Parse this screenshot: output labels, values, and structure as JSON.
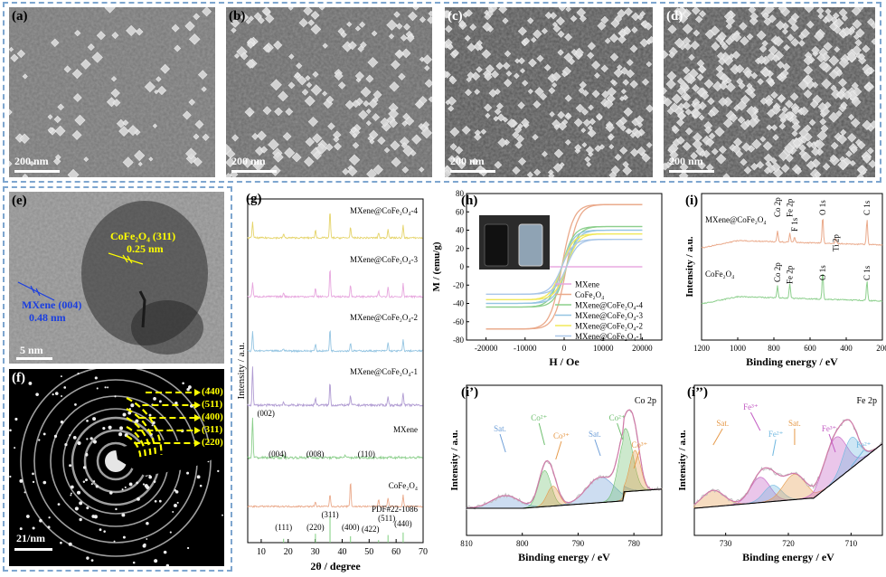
{
  "panels": {
    "a": "(a)",
    "b": "(b)",
    "c": "(c)",
    "d": "(d)",
    "e": "(e)",
    "f": "(f)",
    "g": "(g)",
    "h": "(h)",
    "i": "(i)",
    "i1": "(i’)",
    "i2": "(i’’)"
  },
  "sem_scalebar": "200 nm",
  "tem": {
    "scalebar": "5 nm",
    "cofe_label": "CoFe₂O₄ (311)",
    "cofe_spacing": "0.25 nm",
    "mxene_label": "MXene (004)",
    "mxene_spacing": "0.48 nm"
  },
  "saed": {
    "scalebar": "21/nm",
    "rings": [
      "(440)",
      "(511)",
      "(400)",
      "(311)",
      "(220)"
    ]
  },
  "colors": {
    "mx4": "#e5d46a",
    "mx3": "#e7a6de",
    "mx2": "#95c5e2",
    "mx1": "#b09bd2",
    "mxene": "#8ccf8c",
    "cofe": "#eaa98a",
    "pdf": "#7fcf7f",
    "dash": "#7ea6cf",
    "yellow": "#ffff00",
    "blue": "#1a3ee0"
  },
  "chart_data": [
    {
      "type": "line",
      "id": "g",
      "xlabel": "2θ / degree",
      "ylabel": "Intensity / a.u.",
      "xlim": [
        5,
        70
      ],
      "xticks": [
        10,
        20,
        30,
        40,
        50,
        60,
        70
      ],
      "series": [
        {
          "name": "MXene@CoFe₂O₄-4",
          "peaks": [
            [
              6.8,
              0.6
            ],
            [
              18.3,
              0.15
            ],
            [
              30.1,
              0.3
            ],
            [
              35.5,
              1.0
            ],
            [
              43.1,
              0.4
            ],
            [
              53.5,
              0.2
            ],
            [
              57.0,
              0.35
            ],
            [
              62.6,
              0.45
            ]
          ]
        },
        {
          "name": "MXene@CoFe₂O₄-3",
          "peaks": [
            [
              6.8,
              0.5
            ],
            [
              18.3,
              0.15
            ],
            [
              30.1,
              0.3
            ],
            [
              35.5,
              1.0
            ],
            [
              43.1,
              0.4
            ],
            [
              53.5,
              0.2
            ],
            [
              57.0,
              0.35
            ],
            [
              62.6,
              0.45
            ]
          ]
        },
        {
          "name": "MXene@CoFe₂O₄-2",
          "peaks": [
            [
              6.8,
              0.7
            ],
            [
              18.3,
              0.1
            ],
            [
              30.1,
              0.25
            ],
            [
              35.5,
              0.8
            ],
            [
              43.1,
              0.3
            ],
            [
              57.0,
              0.3
            ],
            [
              62.6,
              0.4
            ]
          ]
        },
        {
          "name": "MXene@CoFe₂O₄-1",
          "peaks": [
            [
              6.8,
              1.0
            ],
            [
              18.3,
              0.1
            ],
            [
              30.1,
              0.2
            ],
            [
              35.5,
              0.6
            ],
            [
              43.1,
              0.25
            ],
            [
              57.0,
              0.25
            ],
            [
              62.6,
              0.35
            ]
          ]
        },
        {
          "name": "MXene",
          "peaks": [
            [
              6.8,
              1.0
            ],
            [
              18.3,
              0.05
            ],
            [
              27.8,
              0.04
            ],
            [
              41.0,
              0.06
            ],
            [
              60.8,
              0.05
            ]
          ]
        },
        {
          "name": "CoFe₂O₄",
          "peaks": [
            [
              30.1,
              0.2
            ],
            [
              35.5,
              0.5
            ],
            [
              43.1,
              1.0
            ],
            [
              53.5,
              0.3
            ],
            [
              57.0,
              0.35
            ],
            [
              62.6,
              0.45
            ]
          ]
        }
      ],
      "annotations": [
        "(002)",
        "(004)",
        "(008)",
        "(110)"
      ],
      "reference": {
        "name": "PDF#22-1086",
        "sticks": [
          [
            18.3,
            0.15
          ],
          [
            30.1,
            0.35
          ],
          [
            35.5,
            1.0
          ],
          [
            43.1,
            0.25
          ],
          [
            53.5,
            0.1
          ],
          [
            57.0,
            0.3
          ],
          [
            62.6,
            0.4
          ]
        ],
        "labels": [
          "(111)",
          "(220)",
          "(311)",
          "(400)",
          "(422)",
          "(511)",
          "(440)"
        ]
      }
    },
    {
      "type": "line",
      "id": "h",
      "xlabel": "H / Oe",
      "ylabel": "M / (emu/g)",
      "xlim": [
        -25000,
        25000
      ],
      "ylim": [
        -80,
        80
      ],
      "xticks": [
        -20000,
        -10000,
        0,
        10000,
        20000
      ],
      "yticks": [
        -80,
        -60,
        -40,
        -20,
        0,
        20,
        40,
        60,
        80
      ],
      "series": [
        {
          "name": "MXene",
          "Ms": 0
        },
        {
          "name": "CoFe₂O₄",
          "Ms": 68
        },
        {
          "name": "MXene@CoFe₂O₄-4",
          "Ms": 44
        },
        {
          "name": "MXene@CoFe₂O₄-3",
          "Ms": 40
        },
        {
          "name": "MXene@CoFe₂O₄-2",
          "Ms": 36
        },
        {
          "name": "MXene@CoFe₂O₄-1",
          "Ms": 30
        }
      ]
    },
    {
      "type": "line",
      "id": "i",
      "xlabel": "Binding energy / eV",
      "ylabel": "Intensity / a.u.",
      "xlim": [
        1200,
        200
      ],
      "xticks": [
        1200,
        1000,
        800,
        600,
        400,
        200
      ],
      "series": [
        {
          "name": "MXene@CoFe₂O₄"
        },
        {
          "name": "CoFe₂O₄"
        }
      ],
      "peak_labels_top": [
        "Co 2p",
        "Fe 2p",
        "F 1s",
        "O 1s",
        "Ti 2p",
        "C 1s"
      ],
      "peak_labels_bottom": [
        "Co 2p",
        "Fe 2p",
        "O 1s",
        "C 1s"
      ]
    },
    {
      "type": "line",
      "id": "i1",
      "title": "Co 2p",
      "xlabel": "Binding energy / eV",
      "ylabel": "Intensity / a.u.",
      "xlim": [
        810,
        775
      ],
      "xticks": [
        810,
        800,
        790,
        780
      ],
      "components": [
        "Sat.",
        "Co²⁺",
        "Co³⁺",
        "Sat.",
        "Co²⁺",
        "Co³⁺"
      ]
    },
    {
      "type": "line",
      "id": "i2",
      "title": "Fe 2p",
      "xlabel": "Binding energy / eV",
      "ylabel": "Intensity / a.u.",
      "xlim": [
        735,
        705
      ],
      "xticks": [
        730,
        720,
        710
      ],
      "components": [
        "Sat.",
        "Fe³⁺",
        "Fe²⁺",
        "Sat.",
        "Fe³⁺",
        "Fe²⁺"
      ]
    }
  ]
}
